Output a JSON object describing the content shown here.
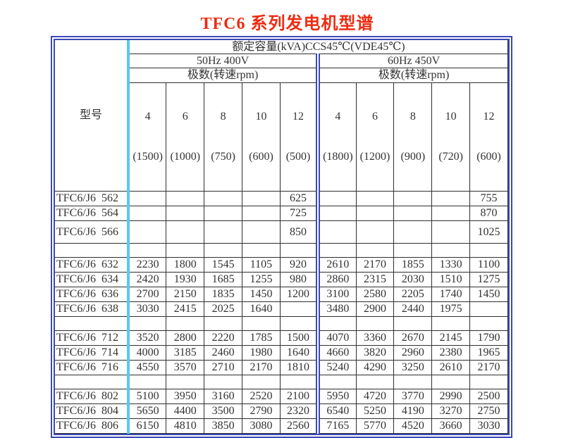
{
  "title": "TFC6 系列发电机型谱",
  "colors": {
    "title_red": "#ee2c12",
    "frame_blue": "#3c49b5",
    "model_divider_cyan": "#58c8f0",
    "grid_line": "#2e2e2e",
    "cell_text": "#333333"
  },
  "table": {
    "model_header": "型号",
    "capacity_header": "额定容量(kVA)CCS45℃(VDE45℃)",
    "sections": [
      {
        "freq": "50Hz 400V",
        "poles_label": "极数(转速rpm)",
        "columns": [
          {
            "poles": "4",
            "rpm": "(1500)"
          },
          {
            "poles": "6",
            "rpm": "(1000)"
          },
          {
            "poles": "8",
            "rpm": "(750)"
          },
          {
            "poles": "10",
            "rpm": "(600)"
          },
          {
            "poles": "12",
            "rpm": "(500)"
          }
        ]
      },
      {
        "freq": "60Hz 450V",
        "poles_label": "极数(转速rpm)",
        "columns": [
          {
            "poles": "4",
            "rpm": "(1800)"
          },
          {
            "poles": "6",
            "rpm": "(1200)"
          },
          {
            "poles": "8",
            "rpm": "(900)"
          },
          {
            "poles": "10",
            "rpm": "(720)"
          },
          {
            "poles": "12",
            "rpm": "(600)"
          }
        ]
      }
    ],
    "rows": [
      {
        "model": "TFC6/J6  562",
        "separator": false,
        "tall": false,
        "values": [
          "",
          "",
          "",
          "",
          "625",
          "",
          "",
          "",
          "",
          "755"
        ]
      },
      {
        "model": "TFC6/J6  564",
        "separator": false,
        "tall": false,
        "values": [
          "",
          "",
          "",
          "",
          "725",
          "",
          "",
          "",
          "",
          "870"
        ]
      },
      {
        "model": "TFC6/J6  566",
        "separator": false,
        "tall": true,
        "values": [
          "",
          "",
          "",
          "",
          "850",
          "",
          "",
          "",
          "",
          "1025"
        ]
      },
      {
        "model": "",
        "separator": true,
        "tall": false,
        "values": [
          "",
          "",
          "",
          "",
          "",
          "",
          "",
          "",
          "",
          ""
        ]
      },
      {
        "model": "TFC6/J6  632",
        "separator": false,
        "tall": false,
        "values": [
          "2230",
          "1800",
          "1545",
          "1105",
          "920",
          "2610",
          "2170",
          "1855",
          "1330",
          "1100"
        ]
      },
      {
        "model": "TFC6/J6  634",
        "separator": false,
        "tall": false,
        "values": [
          "2420",
          "1930",
          "1685",
          "1255",
          "980",
          "2860",
          "2315",
          "2030",
          "1510",
          "1275"
        ]
      },
      {
        "model": "TFC6/J6  636",
        "separator": false,
        "tall": false,
        "values": [
          "2700",
          "2150",
          "1835",
          "1450",
          "1200",
          "3100",
          "2580",
          "2205",
          "1740",
          "1450"
        ]
      },
      {
        "model": "TFC6/J6  638",
        "separator": false,
        "tall": false,
        "values": [
          "3030",
          "2415",
          "2025",
          "1640",
          "",
          "3480",
          "2900",
          "2440",
          "1975",
          ""
        ]
      },
      {
        "model": "",
        "separator": true,
        "tall": false,
        "values": [
          "",
          "",
          "",
          "",
          "",
          "",
          "",
          "",
          "",
          ""
        ]
      },
      {
        "model": "TFC6/J6  712",
        "separator": false,
        "tall": false,
        "values": [
          "3520",
          "2800",
          "2220",
          "1785",
          "1500",
          "4070",
          "3360",
          "2670",
          "2145",
          "1790"
        ]
      },
      {
        "model": "TFC6/J6  714",
        "separator": false,
        "tall": false,
        "values": [
          "4000",
          "3185",
          "2460",
          "1980",
          "1640",
          "4660",
          "3820",
          "2960",
          "2380",
          "1965"
        ]
      },
      {
        "model": "TFC6/J6  716",
        "separator": false,
        "tall": false,
        "values": [
          "4550",
          "3570",
          "2710",
          "2170",
          "1810",
          "5240",
          "4290",
          "3250",
          "2610",
          "2170"
        ]
      },
      {
        "model": "",
        "separator": true,
        "tall": false,
        "values": [
          "",
          "",
          "",
          "",
          "",
          "",
          "",
          "",
          "",
          ""
        ]
      },
      {
        "model": "TFC6/J6  802",
        "separator": false,
        "tall": false,
        "values": [
          "5100",
          "3950",
          "3160",
          "2520",
          "2100",
          "5950",
          "4720",
          "3770",
          "2990",
          "2500"
        ]
      },
      {
        "model": "TFC6/J6  804",
        "separator": false,
        "tall": false,
        "values": [
          "5650",
          "4400",
          "3500",
          "2790",
          "2320",
          "6540",
          "5250",
          "4190",
          "3270",
          "2750"
        ]
      },
      {
        "model": "TFC6/J6  806",
        "separator": false,
        "tall": false,
        "values": [
          "6150",
          "4810",
          "3850",
          "3080",
          "2560",
          "7165",
          "5770",
          "4520",
          "3660",
          "3030"
        ]
      }
    ]
  }
}
